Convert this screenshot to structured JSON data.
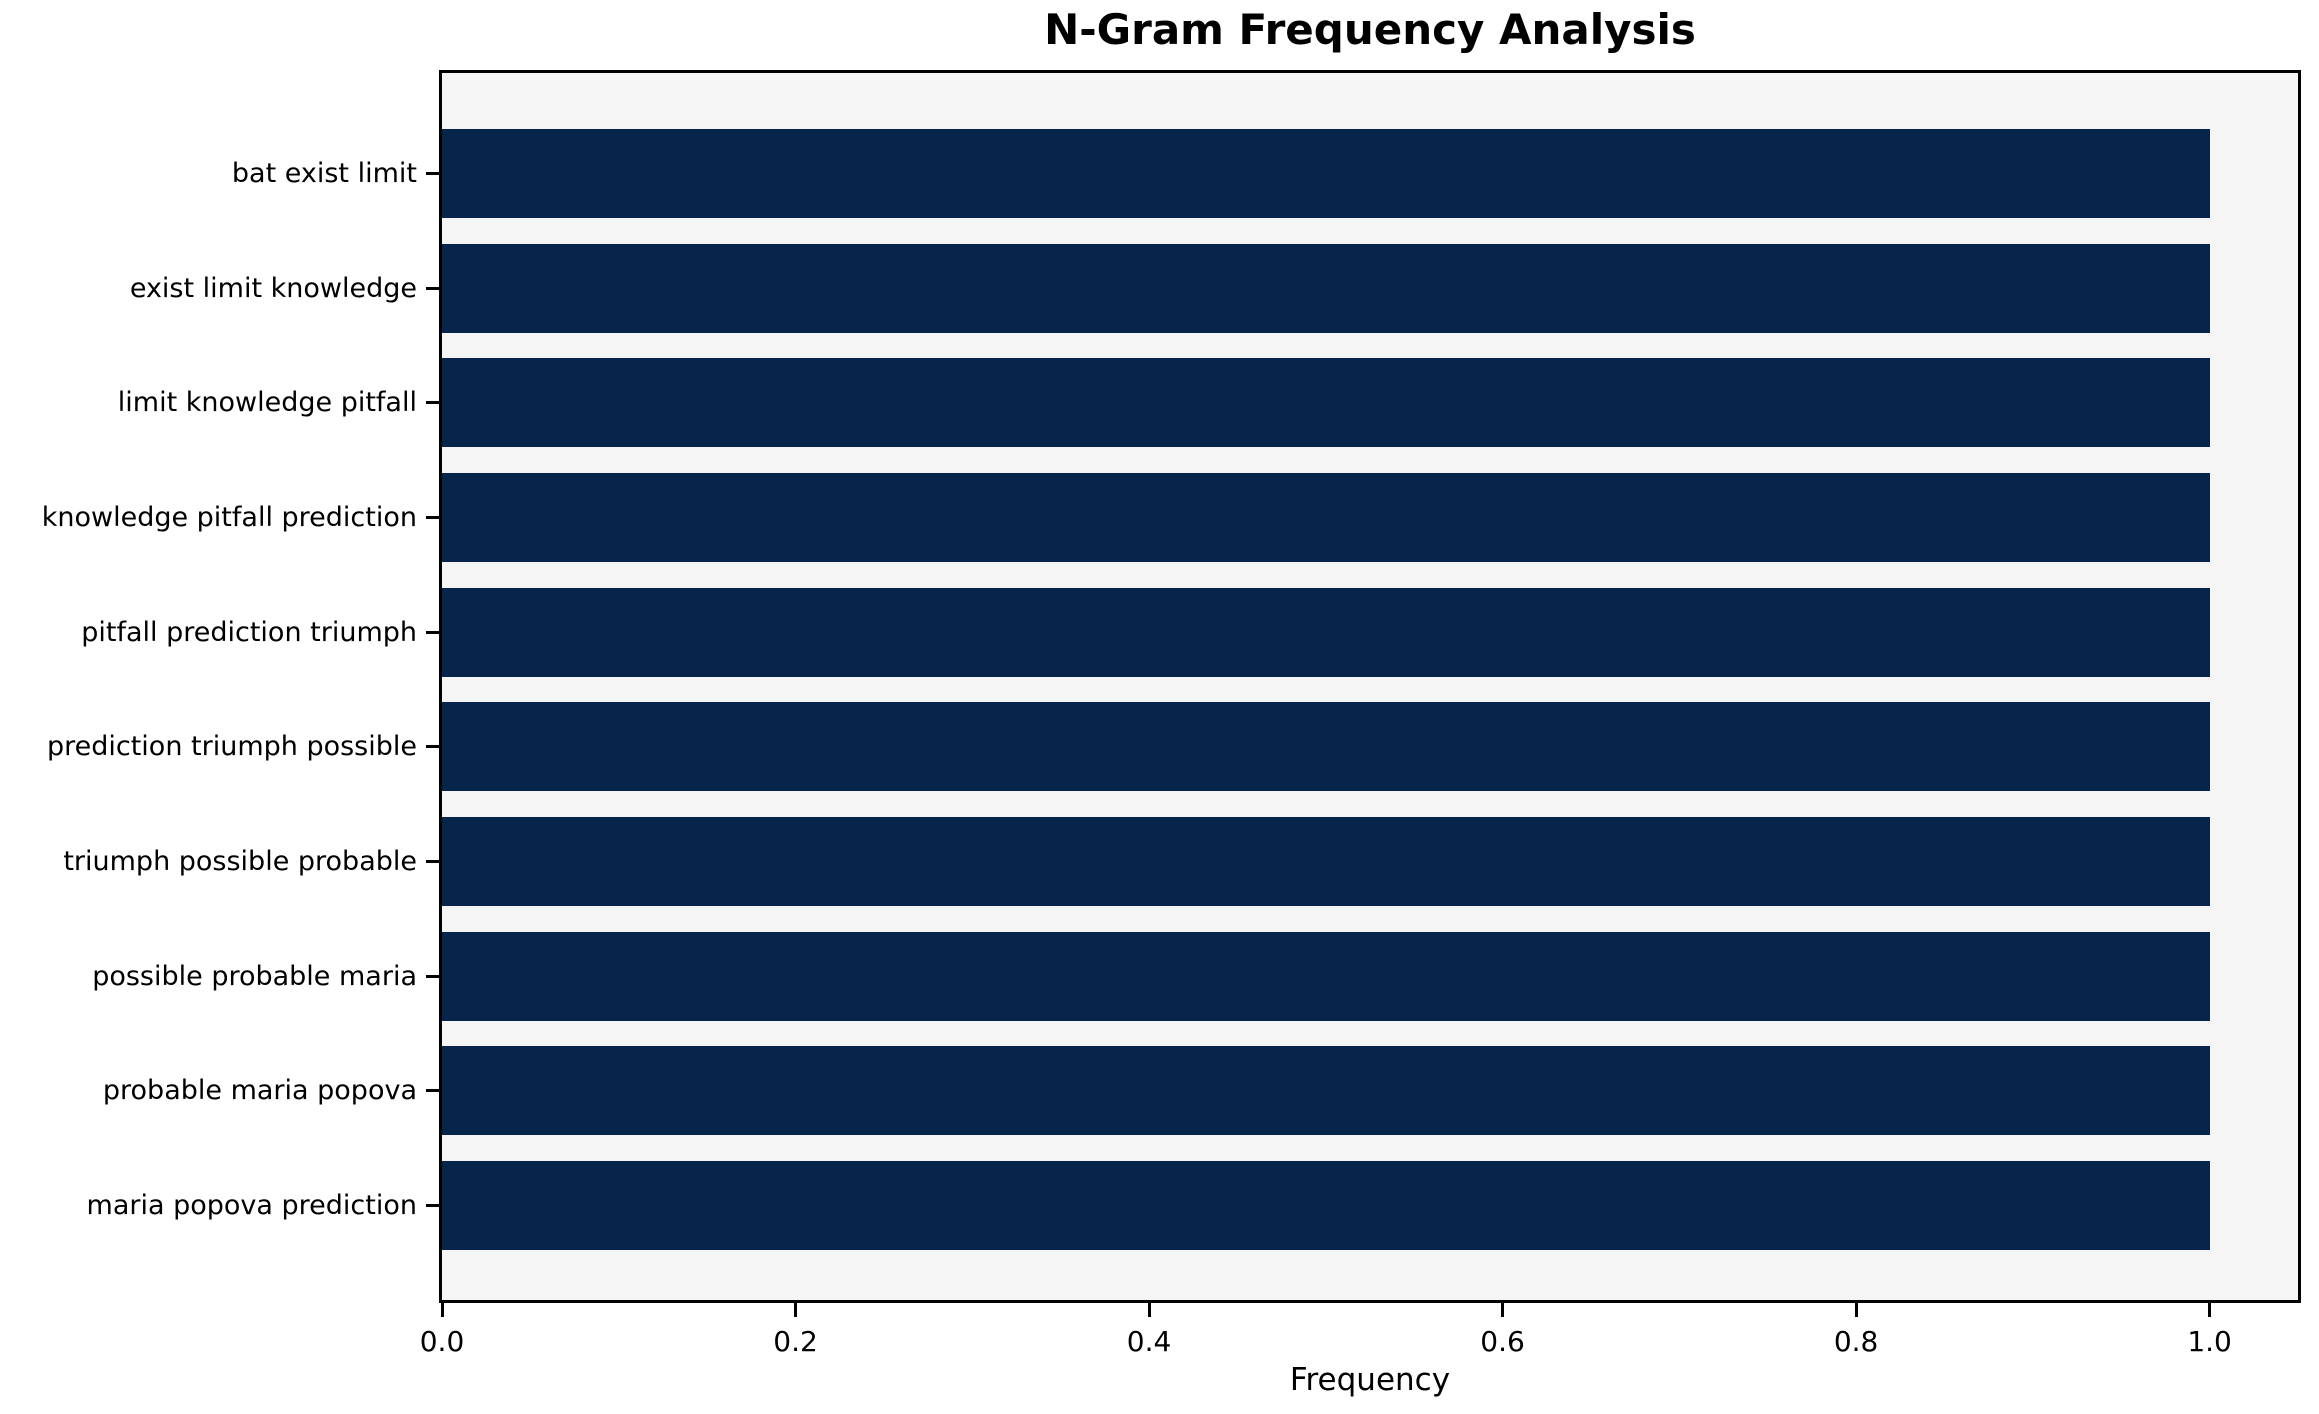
{
  "chart_data": {
    "type": "bar",
    "orientation": "horizontal",
    "title": "N-Gram Frequency Analysis",
    "xlabel": "Frequency",
    "ylabel": "",
    "categories": [
      "bat exist limit",
      "exist limit knowledge",
      "limit knowledge pitfall",
      "knowledge pitfall prediction",
      "pitfall prediction triumph",
      "prediction triumph possible",
      "triumph possible probable",
      "possible probable maria",
      "probable maria popova",
      "maria popova prediction"
    ],
    "values": [
      1.0,
      1.0,
      1.0,
      1.0,
      1.0,
      1.0,
      1.0,
      1.0,
      1.0,
      1.0
    ],
    "xlim": [
      0,
      1.05
    ],
    "x_ticks": [
      0.0,
      0.2,
      0.4,
      0.6,
      0.8,
      1.0
    ],
    "x_tick_labels": [
      "0.0",
      "0.2",
      "0.4",
      "0.6",
      "0.8",
      "1.0"
    ],
    "grid": false,
    "legend": null,
    "bar_color": "#07254a",
    "plot_background": "#f5f5f5",
    "figure_background": "#ffffff",
    "bar_height_fraction": 0.8
  }
}
